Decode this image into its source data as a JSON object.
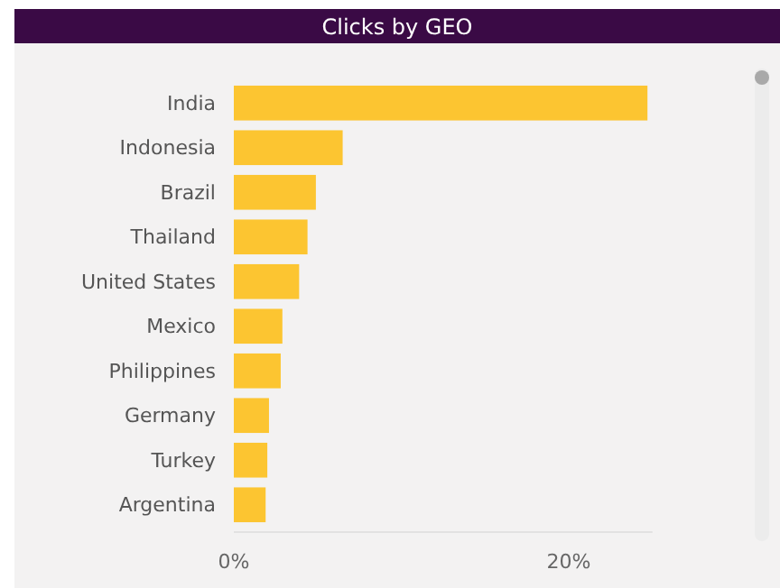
{
  "chart_data": {
    "type": "bar",
    "orientation": "horizontal",
    "title": "Clicks by GEO",
    "categories": [
      "India",
      "Indonesia",
      "Brazil",
      "Thailand",
      "United States",
      "Mexico",
      "Philippines",
      "Germany",
      "Turkey",
      "Argentina"
    ],
    "values": [
      24.7,
      6.5,
      4.9,
      4.4,
      3.9,
      2.9,
      2.8,
      2.1,
      2.0,
      1.9
    ],
    "color": "#fcc531",
    "xlim": [
      0,
      25
    ],
    "xticks": [
      {
        "value": 0,
        "label": "0%"
      },
      {
        "value": 20,
        "label": "20%"
      }
    ],
    "grid": false
  }
}
